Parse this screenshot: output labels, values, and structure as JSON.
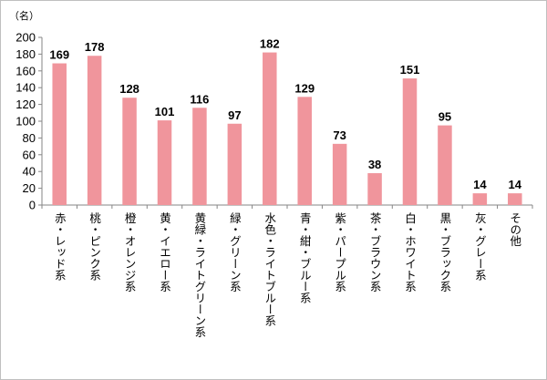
{
  "chart_data": {
    "type": "bar",
    "unit_label": "（名）",
    "categories": [
      "赤・レッド系",
      "桃・ピンク系",
      "橙・オレンジ系",
      "黄・イエロー系",
      "黄緑・ライトグリーン系",
      "緑・グリーン系",
      "水色・ライトブルー系",
      "青・紺・ブルー系",
      "紫・パープル系",
      "茶・ブラウン系",
      "白・ホワイト系",
      "黒・ブラック系",
      "灰・グレー系",
      "その他"
    ],
    "values": [
      169,
      178,
      128,
      101,
      116,
      97,
      182,
      129,
      73,
      38,
      151,
      95,
      14,
      14
    ],
    "y_ticks": [
      0,
      20,
      40,
      60,
      80,
      100,
      120,
      140,
      160,
      180,
      200
    ],
    "ylim": [
      0,
      200
    ],
    "grid": false,
    "legend": "none",
    "bar_color": "#f0959c"
  }
}
